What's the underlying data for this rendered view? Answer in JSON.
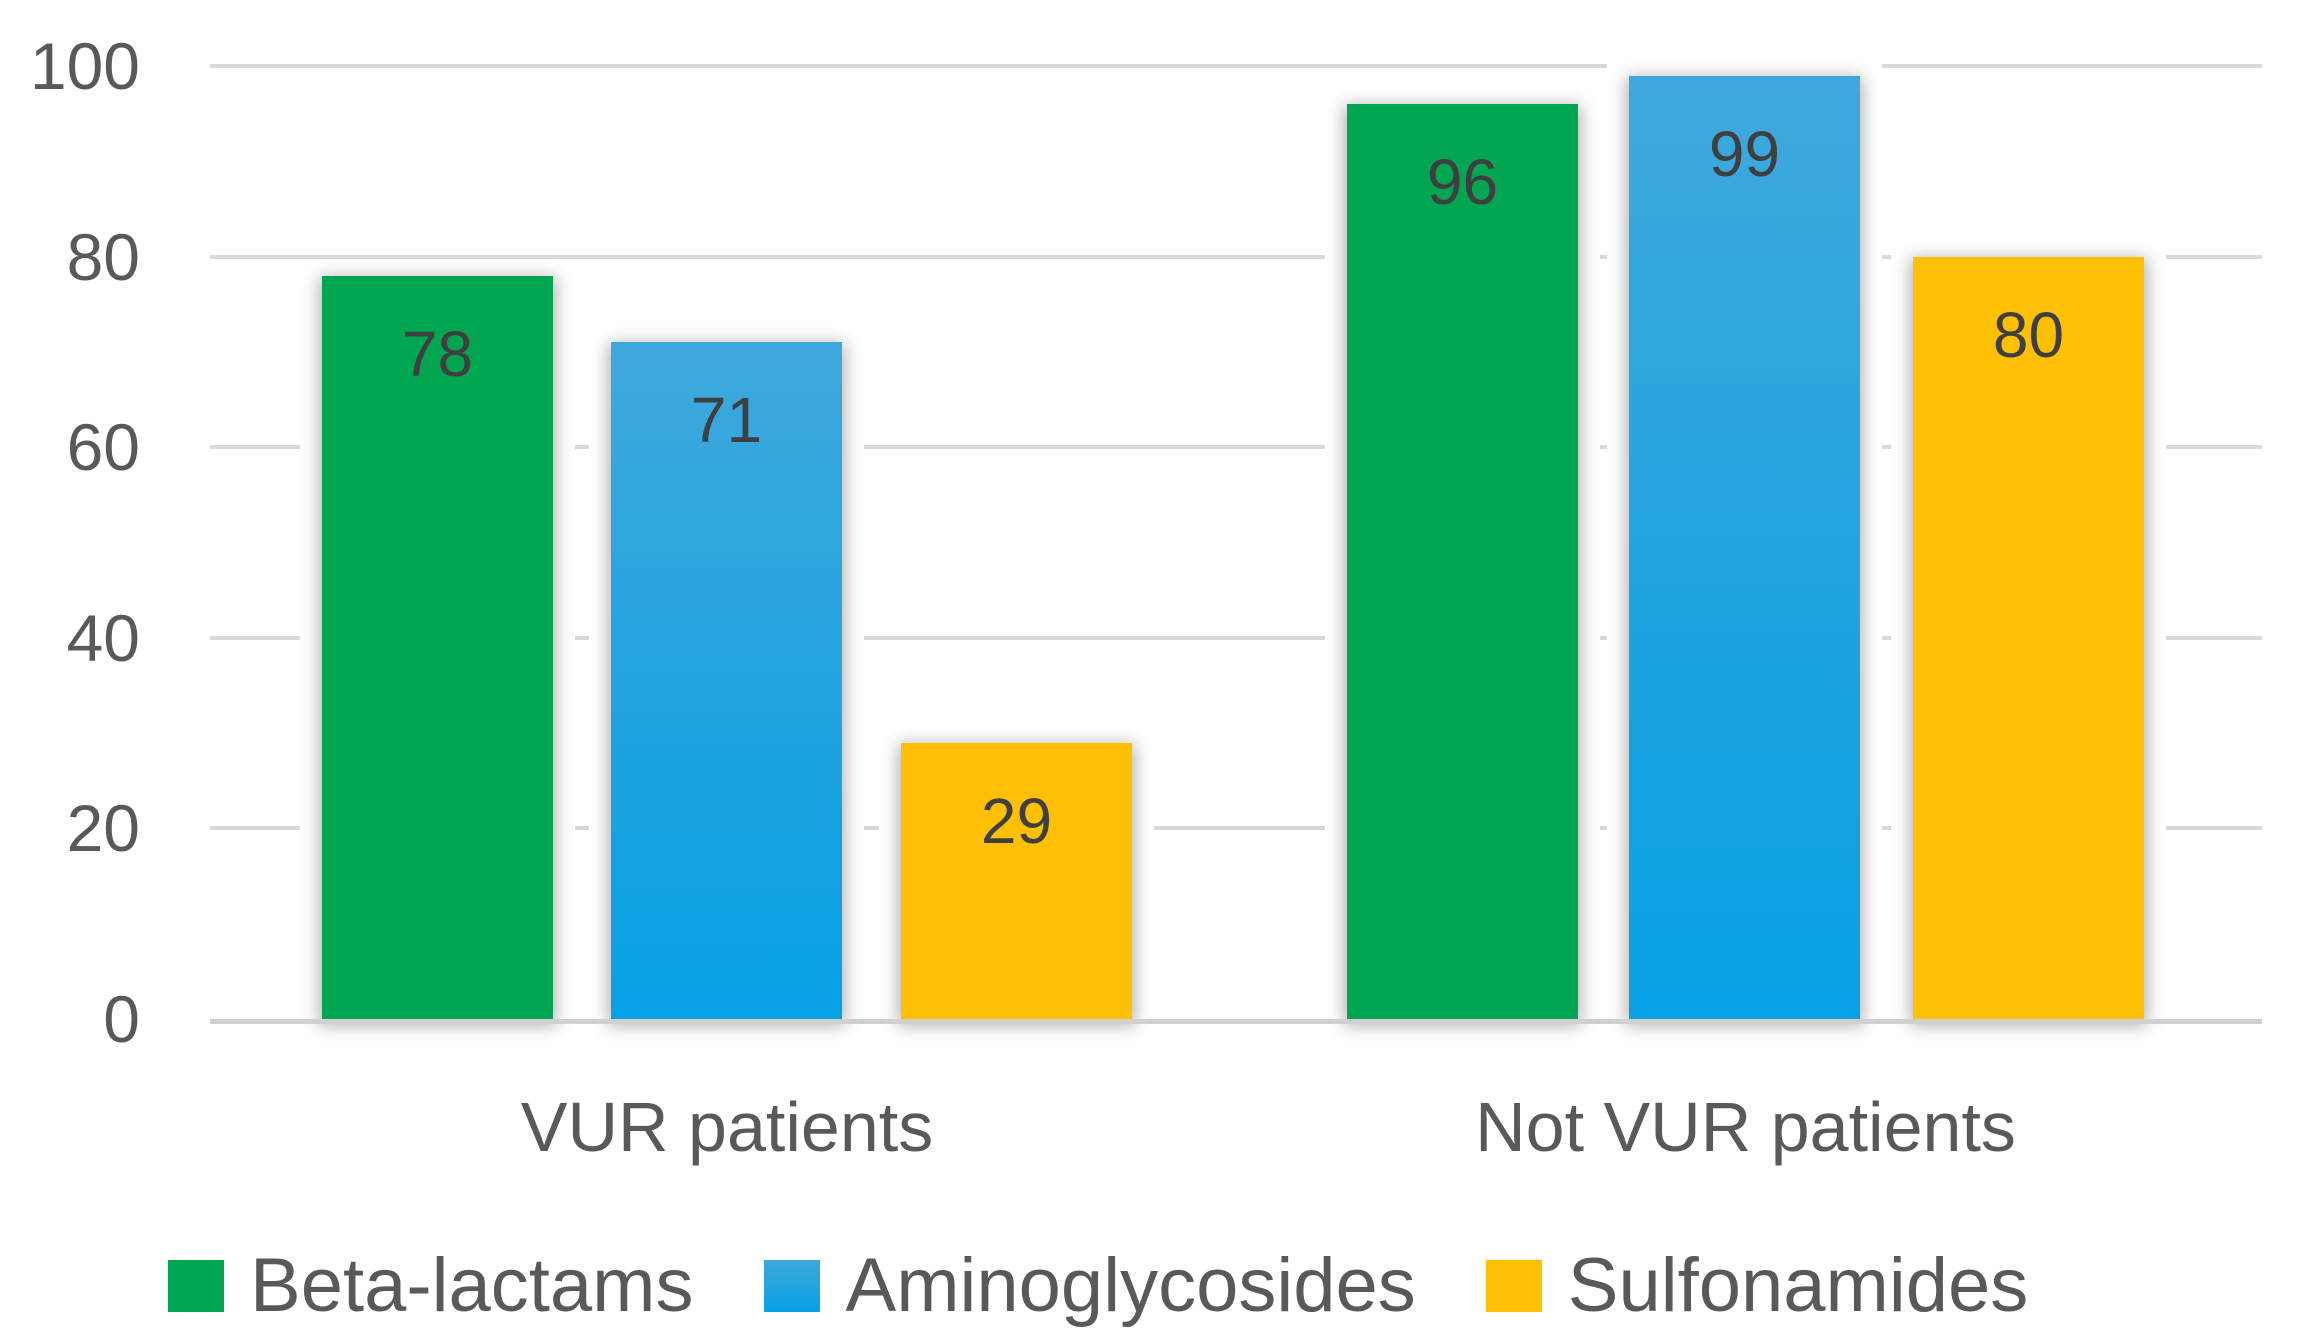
{
  "chart_data": {
    "type": "bar",
    "title": "",
    "xlabel": "",
    "ylabel": "",
    "categories": [
      "VUR patients",
      "Not VUR patients"
    ],
    "series": [
      {
        "name": "Beta-lactams",
        "values": [
          78,
          96
        ],
        "fill": {
          "type": "solid",
          "color": "#02A551"
        }
      },
      {
        "name": "Aminoglycosides",
        "values": [
          71,
          99
        ],
        "fill": {
          "type": "gradient",
          "from": "#3FA8DC",
          "to": "#07A0E4"
        }
      },
      {
        "name": "Sulfonamides",
        "values": [
          29,
          80
        ],
        "fill": {
          "type": "solid",
          "color": "#FFC003"
        }
      }
    ],
    "y_ticks": [
      0,
      20,
      40,
      60,
      80,
      100
    ],
    "ylim": [
      0,
      100
    ],
    "grid": true,
    "legend_position": "bottom",
    "data_labels": "inside-end",
    "colors": {
      "gridline": "#D9D9D9",
      "axis_line": "#D0D0D0",
      "axis_text": "#595959",
      "data_label_text": "#3F3F3F"
    }
  }
}
